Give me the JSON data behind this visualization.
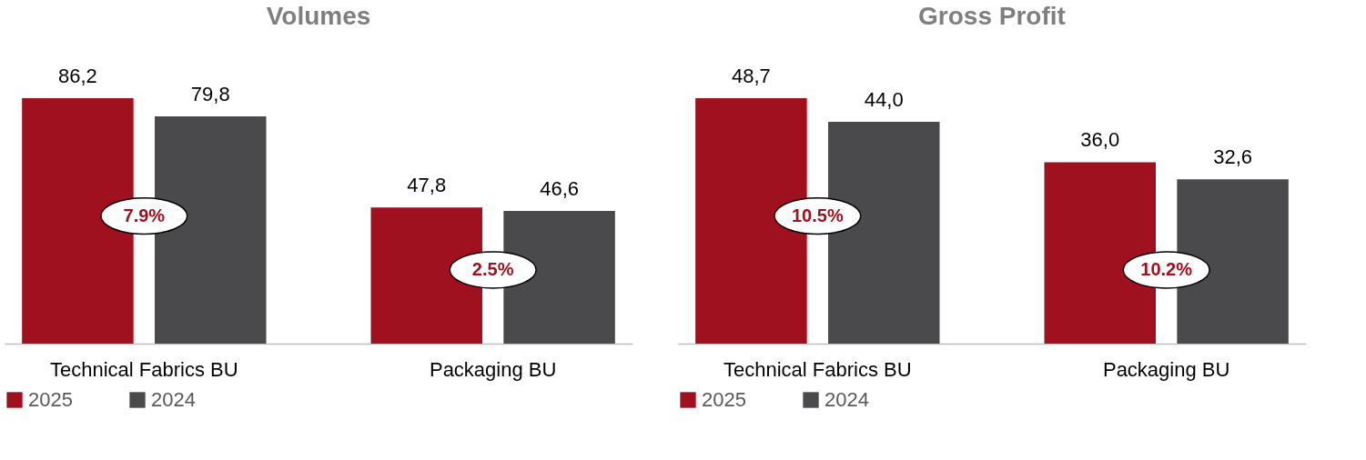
{
  "chart_data": [
    {
      "type": "bar",
      "title": "Volumes",
      "categories": [
        "Technical Fabrics BU",
        "Packaging BU"
      ],
      "legend": "bottom",
      "series": [
        {
          "name": "2025",
          "color": "#a0111f",
          "values": [
            86.2,
            47.8
          ],
          "value_labels": [
            "86,2",
            "47,8"
          ]
        },
        {
          "name": "2024",
          "color": "#4a4a4c",
          "values": [
            79.8,
            46.6
          ],
          "value_labels": [
            "79,8",
            "46,6"
          ]
        }
      ],
      "annotations": [
        "7.9%",
        "2.5%"
      ]
    },
    {
      "type": "bar",
      "title": "Gross Profit",
      "categories": [
        "Technical Fabrics BU",
        "Packaging BU"
      ],
      "legend": "bottom",
      "series": [
        {
          "name": "2025",
          "color": "#a0111f",
          "values": [
            48.7,
            36.0
          ],
          "value_labels": [
            "48,7",
            "36,0"
          ]
        },
        {
          "name": "2024",
          "color": "#4a4a4c",
          "values": [
            44.0,
            32.6
          ],
          "value_labels": [
            "44,0",
            "32,6"
          ]
        }
      ],
      "annotations": [
        "10.5%",
        "10.2%"
      ]
    }
  ]
}
